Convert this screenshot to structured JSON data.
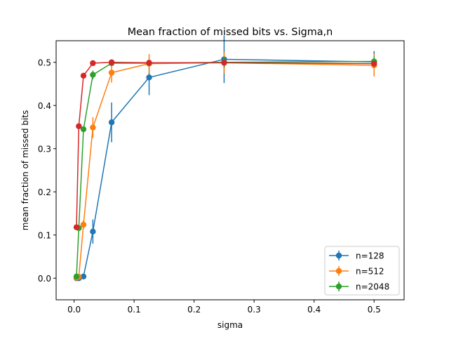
{
  "chart_data": {
    "type": "line",
    "title": "Mean fraction of missed bits vs. Sigma,n",
    "xlabel": "sigma",
    "ylabel": "mean fraction of missed bits",
    "xlim": [
      -0.03,
      0.55
    ],
    "ylim": [
      -0.05,
      0.55
    ],
    "xticks": [
      0.0,
      0.1,
      0.2,
      0.3,
      0.4,
      0.5
    ],
    "xtick_labels": [
      "0.0",
      "0.1",
      "0.2",
      "0.3",
      "0.4",
      "0.5"
    ],
    "yticks": [
      0.0,
      0.1,
      0.2,
      0.3,
      0.4,
      0.5
    ],
    "ytick_labels": [
      "0.0",
      "0.1",
      "0.2",
      "0.3",
      "0.4",
      "0.5"
    ],
    "grid": false,
    "legend_position": "lower-right",
    "legend": [
      "n=128",
      "n=512",
      "n=2048"
    ],
    "series": [
      {
        "name": "n=128",
        "color": "#1f77b4",
        "x": [
          0.0039,
          0.0078,
          0.0156,
          0.03125,
          0.0625,
          0.125,
          0.25,
          0.5
        ],
        "y": [
          0.0,
          0.0,
          0.004,
          0.108,
          0.361,
          0.465,
          0.507,
          0.501
        ],
        "err": [
          0.0,
          0.0,
          0.003,
          0.028,
          0.046,
          0.041,
          0.055,
          0.025
        ]
      },
      {
        "name": "n=512",
        "color": "#ff7f0e",
        "x": [
          0.0039,
          0.0078,
          0.0156,
          0.03125,
          0.0625,
          0.125,
          0.25,
          0.5
        ],
        "y": [
          0.001,
          0.003,
          0.124,
          0.349,
          0.476,
          0.497,
          0.499,
          0.493
        ],
        "err": [
          0.0,
          0.002,
          0.01,
          0.024,
          0.023,
          0.022,
          0.025,
          0.026
        ]
      },
      {
        "name": "n=2048",
        "color": "#2ca02c",
        "x": [
          0.0039,
          0.0078,
          0.0156,
          0.03125,
          0.0625,
          0.125,
          0.25,
          0.5
        ],
        "y": [
          0.004,
          0.116,
          0.345,
          0.471,
          0.498,
          0.498,
          0.5,
          0.502
        ],
        "err": [
          0.0,
          0.004,
          0.006,
          0.01,
          0.006,
          0.007,
          0.012,
          0.013
        ]
      },
      {
        "color": "#d62728",
        "x": [
          0.0039,
          0.0078,
          0.0156,
          0.03125,
          0.0625,
          0.125,
          0.25,
          0.5
        ],
        "y": [
          0.118,
          0.352,
          0.469,
          0.498,
          0.5,
          0.499,
          0.499,
          0.497
        ],
        "err": [
          0.0,
          0.0,
          0.003,
          0.002,
          0.002,
          0.004,
          0.005,
          0.006
        ]
      }
    ]
  }
}
